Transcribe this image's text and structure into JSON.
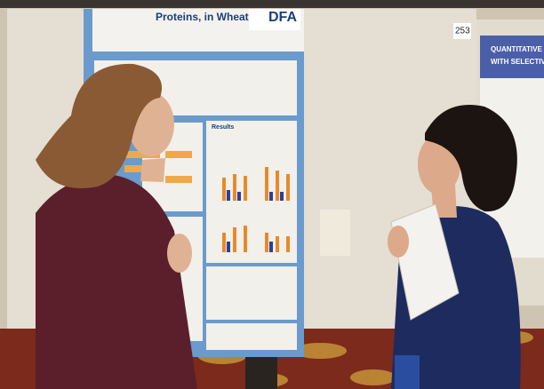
{
  "poster": {
    "title": "Proteins, in Wheat Starch",
    "logo": "DFA",
    "results_heading": "Results"
  },
  "board_number": "253",
  "side_poster": {
    "title_lines": [
      "QUANTITATIVE ANA",
      "WITH SELECTIVE R"
    ]
  }
}
